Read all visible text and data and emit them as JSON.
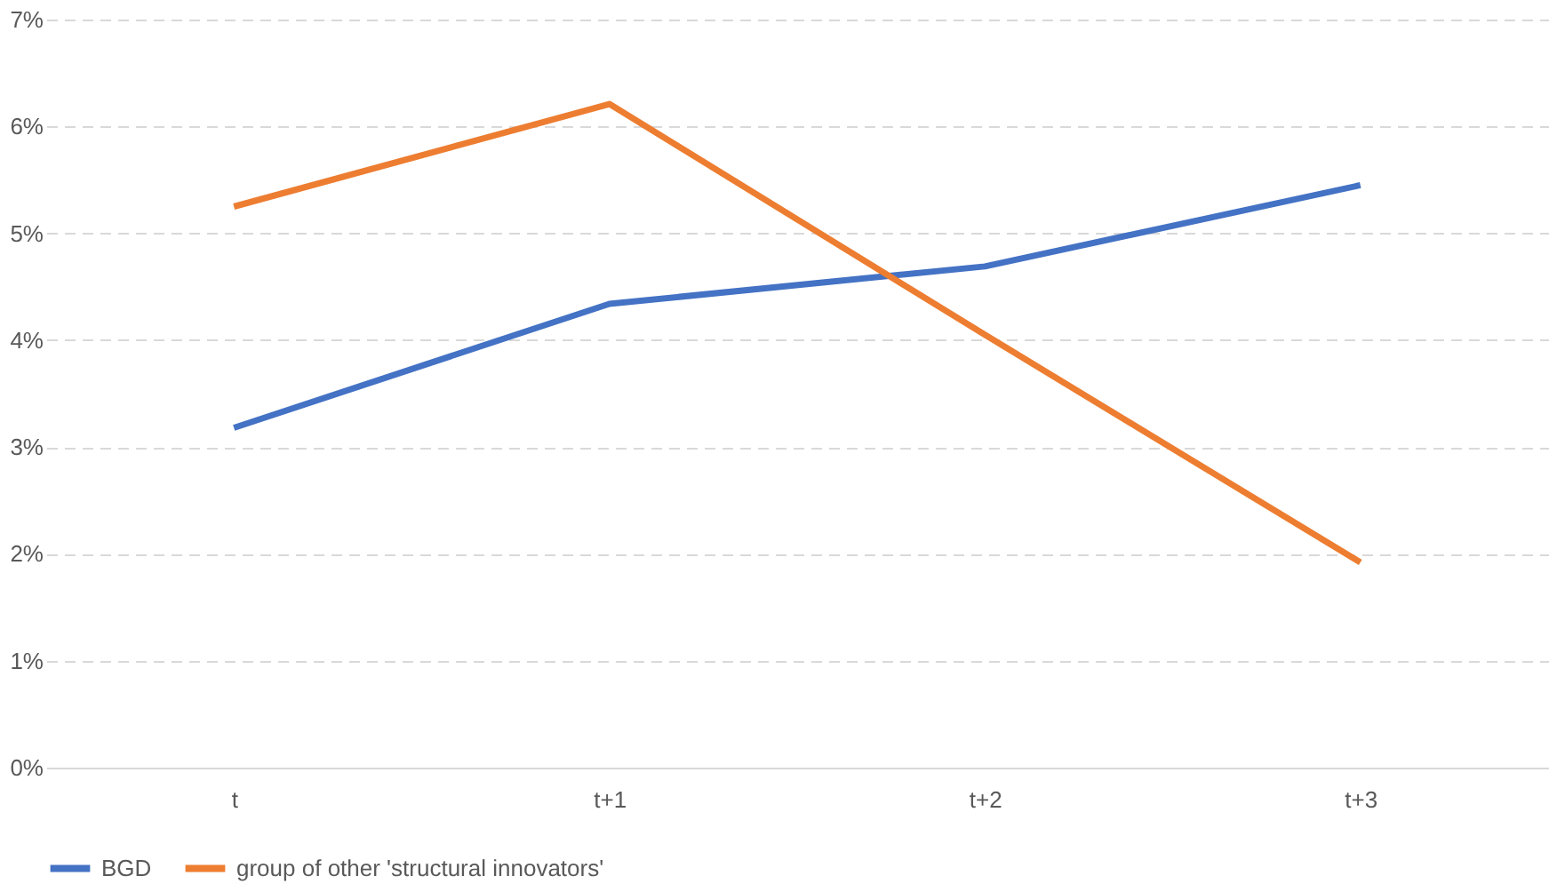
{
  "chart_data": {
    "type": "line",
    "categories": [
      "t",
      "t+1",
      "t+2",
      "t+3"
    ],
    "series": [
      {
        "name": "BGD",
        "color": "#4472c4",
        "values": [
          3.18,
          4.34,
          4.69,
          5.45
        ]
      },
      {
        "name": "group of other 'structural innovators'",
        "color": "#ed7d31",
        "values": [
          5.25,
          6.21,
          4.05,
          1.92
        ]
      }
    ],
    "ylim": [
      0,
      7
    ],
    "yticks": [
      {
        "value": 0,
        "label": "0%"
      },
      {
        "value": 1,
        "label": "1%"
      },
      {
        "value": 2,
        "label": "2%"
      },
      {
        "value": 3,
        "label": "3%"
      },
      {
        "value": 4,
        "label": "4%"
      },
      {
        "value": 5,
        "label": "5%"
      },
      {
        "value": 6,
        "label": "6%"
      },
      {
        "value": 7,
        "label": "7%"
      }
    ],
    "grid": "y",
    "legend": "bottom",
    "marker": "none",
    "line_style": "solid"
  }
}
